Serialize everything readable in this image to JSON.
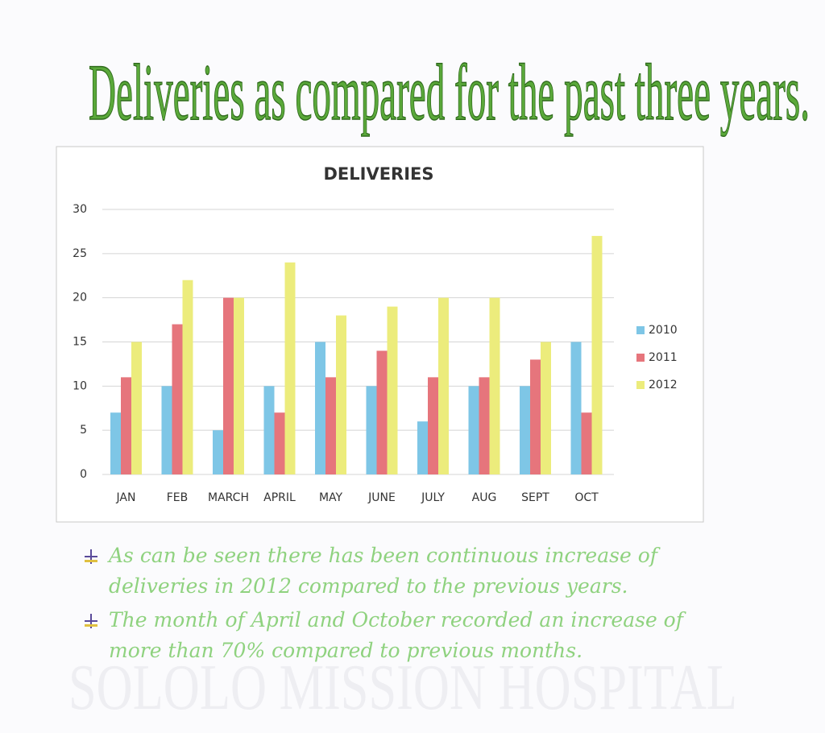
{
  "heading": "Deliveries as compared for the past three years.",
  "chart_data": {
    "type": "bar",
    "title": "DELIVERIES",
    "categories": [
      "JAN",
      "FEB",
      "MARCH",
      "APRIL",
      "MAY",
      "JUNE",
      "JULY",
      "AUG",
      "SEPT",
      "OCT"
    ],
    "series": [
      {
        "name": "2010",
        "color": "#7ec6e6",
        "values": [
          7,
          10,
          5,
          10,
          15,
          10,
          6,
          10,
          10,
          15
        ]
      },
      {
        "name": "2011",
        "color": "#e6757c",
        "values": [
          11,
          17,
          20,
          7,
          11,
          14,
          11,
          11,
          13,
          7
        ]
      },
      {
        "name": "2012",
        "color": "#ecec7c",
        "values": [
          15,
          22,
          20,
          24,
          18,
          19,
          20,
          20,
          15,
          27
        ]
      }
    ],
    "ylim": [
      0,
      30
    ],
    "yticks": [
      0,
      5,
      10,
      15,
      20,
      25,
      30
    ],
    "grid": true,
    "legend": "right"
  },
  "bullets": [
    [
      "As can be seen there has been continuous increase of",
      "deliveries in 2012 compared to the previous years."
    ],
    [
      "The month of April and October recorded an increase of",
      "more than 70% compared to previous months."
    ]
  ],
  "watermark": "SOLOLO MISSION HOSPITAL"
}
